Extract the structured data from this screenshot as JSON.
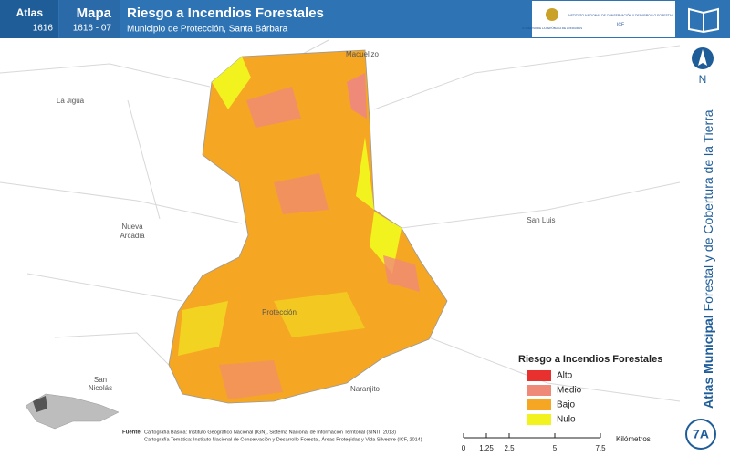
{
  "header": {
    "atlas_label": "Atlas",
    "atlas_code": "1616",
    "map_label": "Mapa",
    "map_code": "1616 - 07",
    "title": "Riesgo a Incendios Forestales",
    "subtitle": "Municipio de Protección, Santa Bárbara",
    "logo_left": "GOBIERNO DE LA REPÚBLICA DE HONDURAS",
    "logo_right": "INSTITUTO NACIONAL DE CONSERVACIÓN Y DESARROLLO FORESTAL",
    "logo_right_sub": "ICF"
  },
  "places": [
    "Macuelizo",
    "La Jigua",
    "Nueva",
    "Arcadia",
    "San Luis",
    "Protección",
    "San",
    "Nicolás",
    "Naranjito"
  ],
  "legend": {
    "title": "Riesgo a Incendios Forestales",
    "items": [
      {
        "label": "Alto",
        "color": "#e8312f"
      },
      {
        "label": "Medio",
        "color": "#f08a78"
      },
      {
        "label": "Bajo",
        "color": "#f5a623"
      },
      {
        "label": "Nulo",
        "color": "#f2f21f"
      }
    ]
  },
  "side": {
    "bold": "Atlas Municipal",
    "rest": "Forestal y de Cobertura de la Tierra",
    "north": "N",
    "badge": "7A"
  },
  "scale": {
    "ticks": [
      0,
      1.25,
      2.5,
      5,
      7.5
    ],
    "unit": "Kilómetros"
  },
  "source": {
    "label": "Fuente:",
    "line1": "Cartografía Básica: Instituto Geográfico Nacional (IGN), Sistema Nacional de Información Territorial (SINIT, 2013)",
    "line2": "Cartografía Temática: Instituto Nacional de Conservación y Desarrollo Forestal, Áreas Protegidas y Vida Silvestre (ICF, 2014)"
  }
}
